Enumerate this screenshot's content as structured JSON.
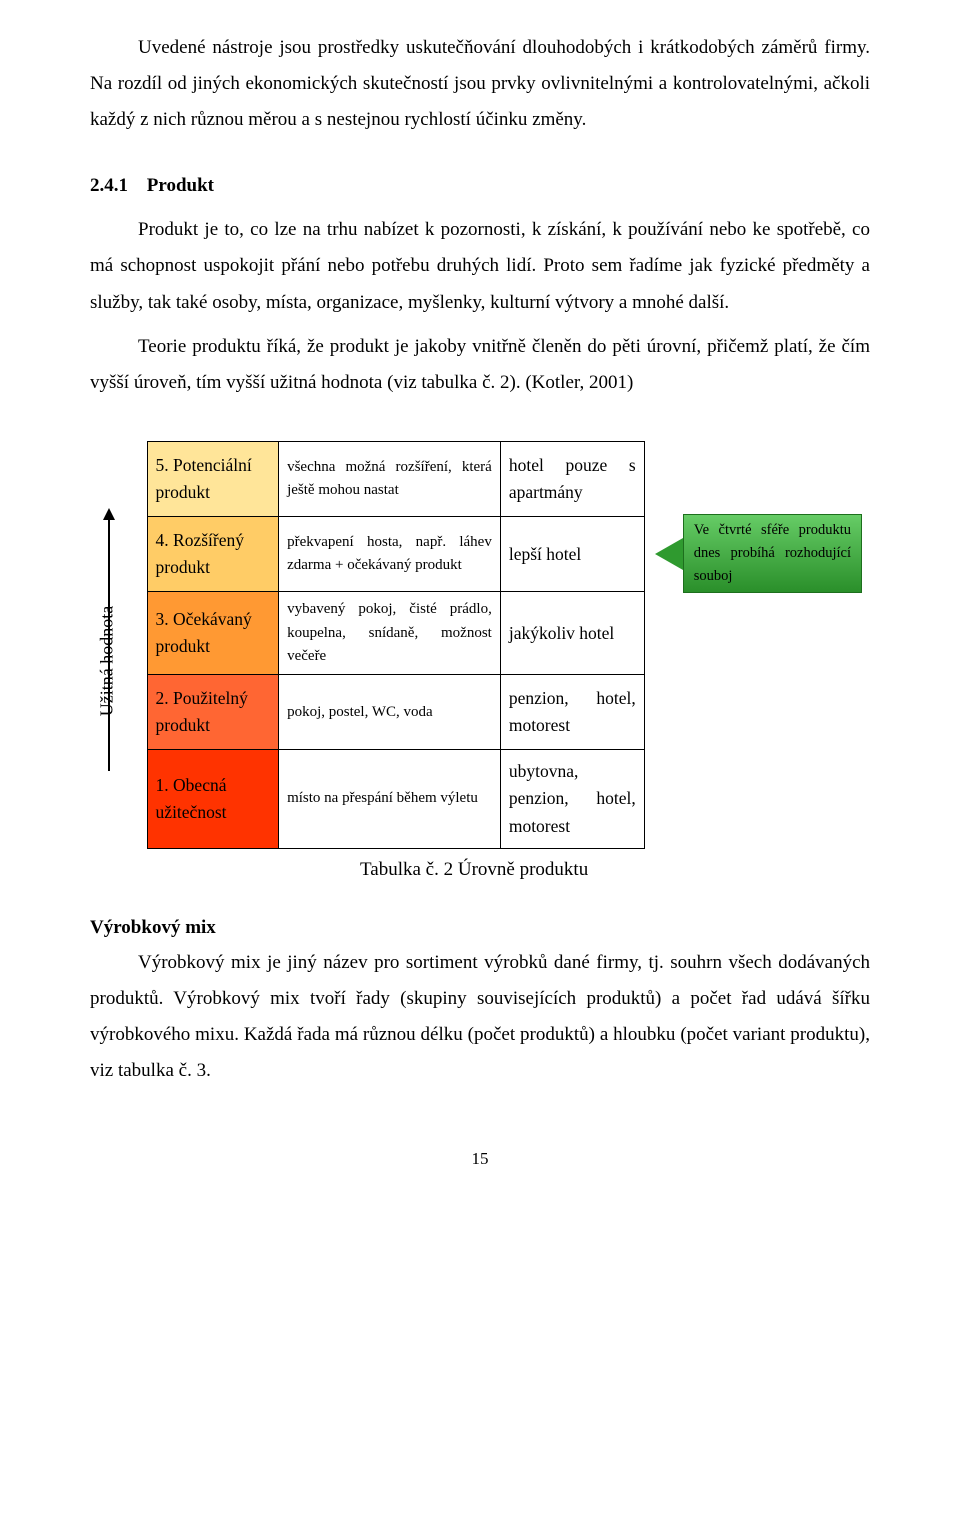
{
  "para1": "Uvedené nástroje jsou prostředky uskutečňování dlouhodobých i krátkodobých záměrů firmy. Na rozdíl od jiných ekonomických skutečností jsou prvky ovlivnitelnými a kontrolovatelnými, ačkoli každý z nich různou měrou a s nestejnou rychlostí účinku změny.",
  "heading_num": "2.4.1",
  "heading_title": "Produkt",
  "para2": "Produkt je to, co lze na trhu nabízet k pozornosti, k získání, k používání nebo ke spotřebě, co má schopnost uspokojit přání nebo potřebu druhých lidí. Proto sem řadíme jak fyzické předměty a služby, tak také osoby, místa, organizace, myšlenky, kulturní výtvory a mnohé další.",
  "para3": "Teorie produktu říká, že produkt je jakoby vnitřně členěn do pěti úrovní, přičemž platí, že čím vyšší úroveň, tím vyšší užitná hodnota (viz tabulka č. 2). (Kotler, 2001)",
  "ylabel": "Užitná hodnota",
  "rows": [
    {
      "level": "5. Potenciální produkt",
      "desc": "všechna možná rozšíření, která ještě mohou nastat",
      "example": "hotel pouze s apartmány",
      "bg": "#ffe599"
    },
    {
      "level": "4. Rozšířený produkt",
      "desc": "překvapení hosta, např. láhev zdarma + očekávaný produkt",
      "example": "lepší hotel",
      "bg": "#ffcc66"
    },
    {
      "level": "3. Očekávaný produkt",
      "desc": "vybavený pokoj, čisté prádlo, koupelna, snídaně, možnost večeře",
      "example": "jakýkoliv hotel",
      "bg": "#ff9933"
    },
    {
      "level": "2. Použitelný produkt",
      "desc": "pokoj, postel, WC, voda",
      "example": "penzion, hotel, motorest",
      "bg": "#ff6633"
    },
    {
      "level": "1. Obecná užitečnost",
      "desc": "místo na přespání během výletu",
      "example": "ubytovna, penzion, hotel, motorest",
      "bg": "#ff3300"
    }
  ],
  "callout": "Ve čtvrté sféře produktu dnes probíhá rozhodující souboj",
  "table_caption": "Tabulka č. 2  Úrovně produktu",
  "subheading": "Výrobkový mix",
  "para4": "Výrobkový mix je jiný název pro sortiment výrobků dané firmy, tj. souhrn všech dodávaných produktů. Výrobkový mix tvoří řady (skupiny souvisejících produktů) a počet řad udává šířku výrobkového mixu. Každá řada má různou délku (počet produktů) a hloubku (počet variant produktu), viz tabulka č. 3.",
  "page_number": "15"
}
